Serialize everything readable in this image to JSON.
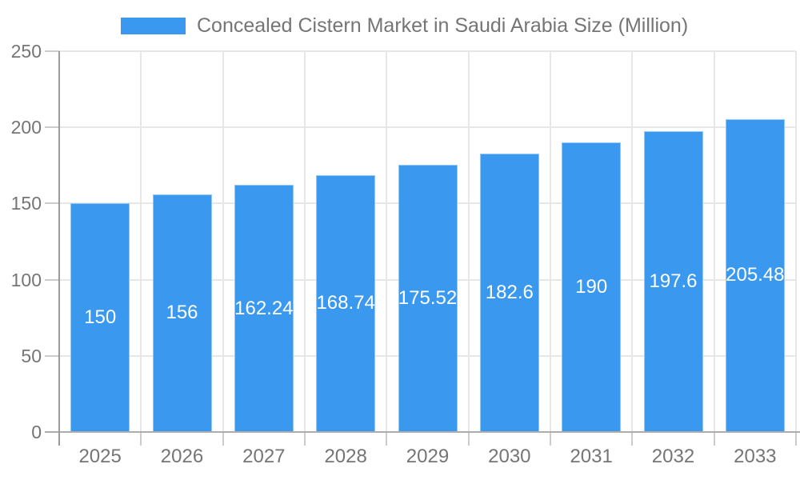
{
  "chart_data": {
    "type": "bar",
    "title": "Concealed Cistern Market in Saudi Arabia Size (Million)",
    "categories": [
      "2025",
      "2026",
      "2027",
      "2028",
      "2029",
      "2030",
      "2031",
      "2032",
      "2033"
    ],
    "values": [
      150,
      156,
      162.24,
      168.74,
      175.52,
      182.6,
      190,
      197.6,
      205.48
    ],
    "value_labels": [
      "150",
      "156",
      "162.24",
      "168.74",
      "175.52",
      "182.6",
      "190",
      "197.6",
      "205.48"
    ],
    "xlabel": "",
    "ylabel": "",
    "ylim": [
      0,
      250
    ],
    "yticks": [
      0,
      50,
      100,
      150,
      200,
      250
    ],
    "grid": true,
    "legend_position": "top",
    "colors": {
      "bar": "#3A99EE",
      "value_label": "#FFFFFF",
      "axis_text": "#757575",
      "grid_line": "#E7E7E7",
      "axis_line_y": "#9B9B9B",
      "axis_line_x": "#ADADAD",
      "tick_line": "#CCCCCC",
      "background": "#FFFFFF"
    }
  }
}
